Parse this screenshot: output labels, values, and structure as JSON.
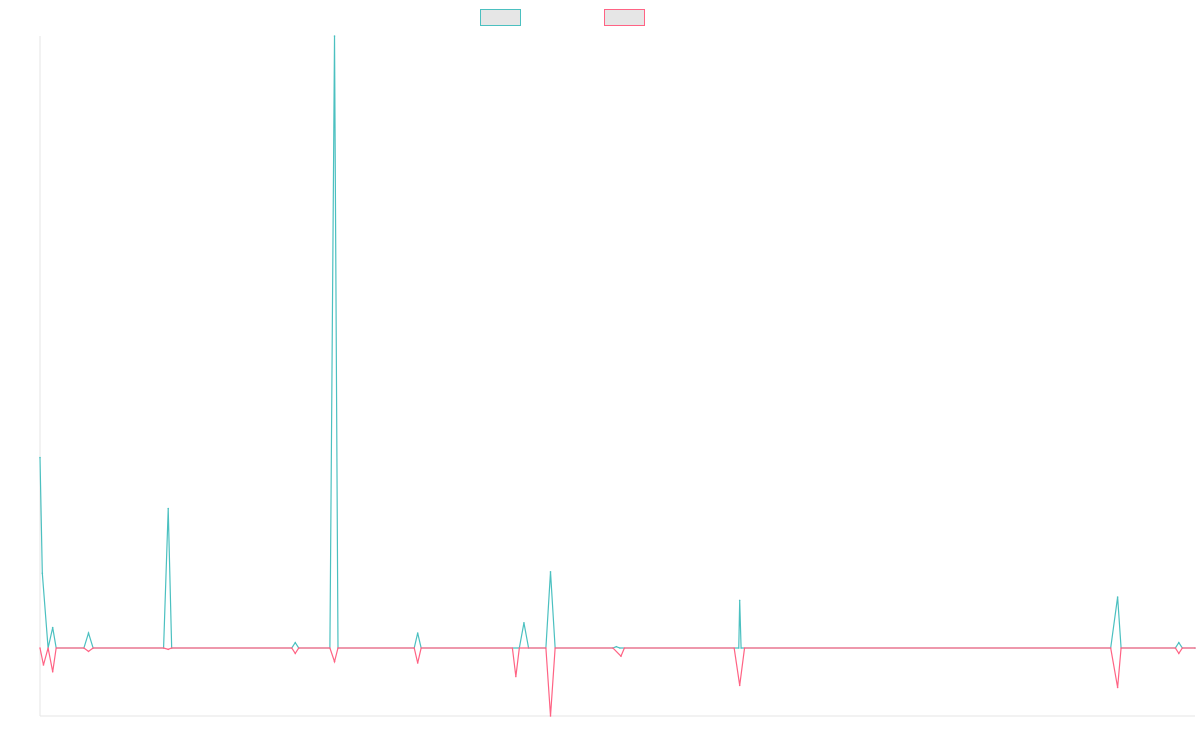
{
  "chart_data": {
    "type": "line",
    "title": "",
    "xlabel": "",
    "ylabel": "",
    "grid": false,
    "legend": {
      "placement": "top-center",
      "entries": [
        {
          "label": "",
          "color": "#4bc0c0",
          "fill": "#e6e6e6"
        },
        {
          "label": "",
          "color": "#ff6384",
          "fill": "#e6e6e6"
        }
      ]
    },
    "xlim": [
      0,
      1000
    ],
    "ylim": [
      -100,
      900
    ],
    "series": [
      {
        "name": "",
        "color": "#4bc0c0",
        "points": [
          [
            0,
            280
          ],
          [
            2,
            110
          ],
          [
            7,
            0
          ],
          [
            11,
            30
          ],
          [
            14,
            0
          ],
          [
            38,
            0
          ],
          [
            42,
            22
          ],
          [
            46,
            0
          ],
          [
            107,
            0
          ],
          [
            111,
            205
          ],
          [
            114,
            0
          ],
          [
            218,
            0
          ],
          [
            221,
            8
          ],
          [
            224,
            0
          ],
          [
            251,
            0
          ],
          [
            255,
            900
          ],
          [
            258,
            0
          ],
          [
            324,
            0
          ],
          [
            327,
            22
          ],
          [
            330,
            0
          ],
          [
            415,
            0
          ],
          [
            419,
            37
          ],
          [
            423,
            0
          ],
          [
            438,
            0
          ],
          [
            442,
            112
          ],
          [
            446,
            0
          ],
          [
            496,
            0
          ],
          [
            499,
            2
          ],
          [
            502,
            0
          ],
          [
            605,
            0
          ],
          [
            605.8,
            70
          ],
          [
            607,
            0
          ],
          [
            927,
            0
          ],
          [
            933,
            75
          ],
          [
            936,
            0
          ],
          [
            983,
            0
          ],
          [
            986,
            8
          ],
          [
            989,
            0
          ],
          [
            1000,
            0
          ]
        ]
      },
      {
        "name": "",
        "color": "#ff6384",
        "points": [
          [
            0,
            0
          ],
          [
            3,
            -25
          ],
          [
            7,
            0
          ],
          [
            11,
            -35
          ],
          [
            14,
            0
          ],
          [
            38,
            0
          ],
          [
            42,
            -5
          ],
          [
            46,
            0
          ],
          [
            107,
            0
          ],
          [
            111,
            -2
          ],
          [
            114,
            0
          ],
          [
            218,
            0
          ],
          [
            221,
            -8
          ],
          [
            224,
            0
          ],
          [
            251,
            0
          ],
          [
            255,
            -20
          ],
          [
            258,
            0
          ],
          [
            324,
            0
          ],
          [
            327,
            -22
          ],
          [
            330,
            0
          ],
          [
            409,
            0
          ],
          [
            412,
            -42
          ],
          [
            415,
            0
          ],
          [
            438,
            0
          ],
          [
            442,
            -100
          ],
          [
            446,
            0
          ],
          [
            496,
            0
          ],
          [
            503,
            -12
          ],
          [
            506,
            0
          ],
          [
            601,
            0
          ],
          [
            605.8,
            -55
          ],
          [
            610,
            0
          ],
          [
            927,
            0
          ],
          [
            933,
            -58
          ],
          [
            936,
            0
          ],
          [
            983,
            0
          ],
          [
            986,
            -8
          ],
          [
            989,
            0
          ],
          [
            1000,
            0
          ]
        ]
      }
    ]
  }
}
